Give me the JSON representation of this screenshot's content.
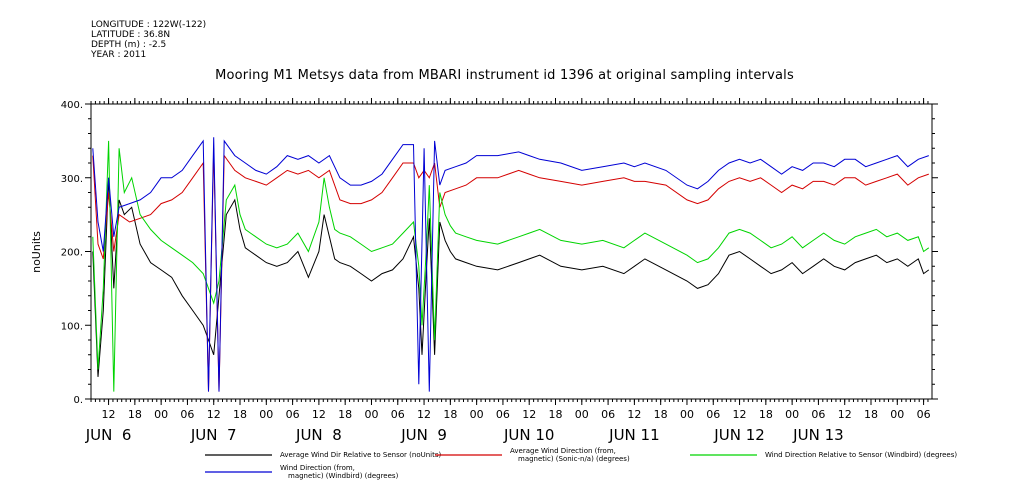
{
  "meta": {
    "longitude": "LONGITUDE : 122W(-122)",
    "latitude": "LATITUDE : 36.8N",
    "depth": "DEPTH (m) : -2.5",
    "year": "YEAR : 2011"
  },
  "chart_data": {
    "type": "line",
    "title": "Mooring M1 Metsys data from MBARI instrument id 1396 at original sampling intervals",
    "ylabel": "noUnits",
    "xlabel": "",
    "ylim": [
      0,
      400
    ],
    "yticks": [
      0,
      100,
      200,
      300,
      400
    ],
    "ytick_labels": [
      "0.",
      "100.",
      "200.",
      "300.",
      "400."
    ],
    "xlim": [
      5.333,
      13.33
    ],
    "hour_ticks": [
      {
        "x": 5.5,
        "label": "12"
      },
      {
        "x": 5.75,
        "label": "18"
      },
      {
        "x": 6.0,
        "label": "00"
      },
      {
        "x": 6.25,
        "label": "06"
      },
      {
        "x": 6.5,
        "label": "12"
      },
      {
        "x": 6.75,
        "label": "18"
      },
      {
        "x": 7.0,
        "label": "00"
      },
      {
        "x": 7.25,
        "label": "06"
      },
      {
        "x": 7.5,
        "label": "12"
      },
      {
        "x": 7.75,
        "label": "18"
      },
      {
        "x": 8.0,
        "label": "00"
      },
      {
        "x": 8.25,
        "label": "06"
      },
      {
        "x": 8.5,
        "label": "12"
      },
      {
        "x": 8.75,
        "label": "18"
      },
      {
        "x": 9.0,
        "label": "00"
      },
      {
        "x": 9.25,
        "label": "06"
      },
      {
        "x": 9.5,
        "label": "12"
      },
      {
        "x": 9.75,
        "label": "18"
      },
      {
        "x": 10.0,
        "label": "00"
      },
      {
        "x": 10.25,
        "label": "06"
      },
      {
        "x": 10.5,
        "label": "12"
      },
      {
        "x": 10.75,
        "label": "18"
      },
      {
        "x": 11.0,
        "label": "00"
      },
      {
        "x": 11.25,
        "label": "06"
      },
      {
        "x": 11.5,
        "label": "12"
      },
      {
        "x": 11.75,
        "label": "18"
      },
      {
        "x": 12.0,
        "label": "00"
      },
      {
        "x": 12.25,
        "label": "06"
      },
      {
        "x": 12.5,
        "label": "12"
      },
      {
        "x": 12.75,
        "label": "18"
      },
      {
        "x": 13.0,
        "label": "00"
      },
      {
        "x": 13.25,
        "label": "06"
      }
    ],
    "day_labels": [
      {
        "x": 5.5,
        "label": "JUN  6"
      },
      {
        "x": 6.5,
        "label": "JUN  7"
      },
      {
        "x": 7.5,
        "label": "JUN  8"
      },
      {
        "x": 8.5,
        "label": "JUN  9"
      },
      {
        "x": 9.5,
        "label": "JUN 10"
      },
      {
        "x": 10.5,
        "label": "JUN 11"
      },
      {
        "x": 11.5,
        "label": "JUN 12"
      },
      {
        "x": 12.25,
        "label": "JUN 13"
      }
    ],
    "x_unit": "day of June 2011 (fractional)",
    "series": [
      {
        "name": "Average Wind Dir Relative to Sensor (noUnits)",
        "color": "#000000",
        "x": [
          5.35,
          5.4,
          5.45,
          5.5,
          5.55,
          5.6,
          5.65,
          5.72,
          5.8,
          5.9,
          6.0,
          6.1,
          6.2,
          6.3,
          6.4,
          6.45,
          6.5,
          6.55,
          6.62,
          6.7,
          6.75,
          6.8,
          6.85,
          6.9,
          7.0,
          7.1,
          7.2,
          7.3,
          7.4,
          7.5,
          7.55,
          7.6,
          7.65,
          7.7,
          7.8,
          7.9,
          8.0,
          8.1,
          8.2,
          8.3,
          8.4,
          8.45,
          8.48,
          8.52,
          8.55,
          8.6,
          8.65,
          8.7,
          8.75,
          8.8,
          8.9,
          9.0,
          9.2,
          9.4,
          9.5,
          9.6,
          9.8,
          10.0,
          10.2,
          10.4,
          10.5,
          10.6,
          10.8,
          11.0,
          11.1,
          11.2,
          11.3,
          11.4,
          11.5,
          11.6,
          11.7,
          11.8,
          11.9,
          12.0,
          12.1,
          12.2,
          12.3,
          12.4,
          12.5,
          12.6,
          12.7,
          12.8,
          12.9,
          13.0,
          13.1,
          13.2,
          13.25,
          13.3
        ],
        "y": [
          200,
          30,
          120,
          300,
          150,
          270,
          250,
          260,
          210,
          185,
          175,
          165,
          140,
          120,
          100,
          80,
          60,
          140,
          250,
          270,
          230,
          205,
          200,
          195,
          185,
          180,
          185,
          200,
          165,
          200,
          250,
          220,
          190,
          185,
          180,
          170,
          160,
          170,
          175,
          190,
          220,
          150,
          60,
          170,
          245,
          60,
          240,
          215,
          200,
          190,
          185,
          180,
          175,
          185,
          190,
          195,
          180,
          175,
          180,
          170,
          180,
          190,
          175,
          160,
          150,
          155,
          170,
          195,
          200,
          190,
          180,
          170,
          175,
          185,
          170,
          180,
          190,
          180,
          175,
          185,
          190,
          195,
          185,
          190,
          180,
          190,
          170,
          175
        ]
      },
      {
        "name": "Average Wind Direction (from, magnetic) (Sonic-n/a) (degrees)",
        "color": "#d40000",
        "x": [
          5.35,
          5.4,
          5.45,
          5.5,
          5.55,
          5.6,
          5.7,
          5.8,
          5.9,
          6.0,
          6.1,
          6.2,
          6.3,
          6.4,
          6.45,
          6.5,
          6.55,
          6.6,
          6.7,
          6.8,
          6.9,
          7.0,
          7.1,
          7.2,
          7.3,
          7.4,
          7.5,
          7.6,
          7.7,
          7.8,
          7.9,
          8.0,
          8.1,
          8.2,
          8.3,
          8.4,
          8.45,
          8.5,
          8.55,
          8.6,
          8.65,
          8.7,
          8.8,
          8.9,
          9.0,
          9.2,
          9.4,
          9.5,
          9.6,
          9.8,
          10.0,
          10.2,
          10.4,
          10.5,
          10.6,
          10.8,
          11.0,
          11.1,
          11.2,
          11.3,
          11.4,
          11.5,
          11.6,
          11.7,
          11.8,
          11.9,
          12.0,
          12.1,
          12.2,
          12.3,
          12.4,
          12.5,
          12.6,
          12.7,
          12.8,
          12.9,
          13.0,
          13.1,
          13.2,
          13.3
        ],
        "y": [
          330,
          210,
          190,
          280,
          200,
          250,
          240,
          245,
          250,
          265,
          270,
          280,
          300,
          320,
          10,
          340,
          10,
          330,
          310,
          300,
          295,
          290,
          300,
          310,
          305,
          310,
          300,
          310,
          270,
          265,
          265,
          270,
          280,
          300,
          320,
          320,
          300,
          310,
          300,
          320,
          260,
          280,
          285,
          290,
          300,
          300,
          310,
          305,
          300,
          295,
          290,
          295,
          300,
          295,
          295,
          290,
          270,
          265,
          270,
          285,
          295,
          300,
          295,
          300,
          290,
          280,
          290,
          285,
          295,
          295,
          290,
          300,
          300,
          290,
          295,
          300,
          305,
          290,
          300,
          305
        ]
      },
      {
        "name": "Wind Direction Relative to Sensor (Windbird) (degrees)",
        "color": "#00d400",
        "x": [
          5.35,
          5.4,
          5.45,
          5.5,
          5.55,
          5.6,
          5.65,
          5.72,
          5.8,
          5.9,
          6.0,
          6.1,
          6.2,
          6.3,
          6.4,
          6.45,
          6.5,
          6.55,
          6.62,
          6.7,
          6.75,
          6.8,
          6.85,
          6.9,
          7.0,
          7.1,
          7.2,
          7.3,
          7.4,
          7.5,
          7.55,
          7.6,
          7.65,
          7.7,
          7.8,
          7.9,
          8.0,
          8.1,
          8.2,
          8.3,
          8.4,
          8.45,
          8.48,
          8.52,
          8.55,
          8.6,
          8.65,
          8.7,
          8.75,
          8.8,
          8.9,
          9.0,
          9.2,
          9.4,
          9.5,
          9.6,
          9.8,
          10.0,
          10.2,
          10.4,
          10.5,
          10.6,
          10.8,
          11.0,
          11.1,
          11.2,
          11.3,
          11.4,
          11.5,
          11.6,
          11.7,
          11.8,
          11.9,
          12.0,
          12.1,
          12.2,
          12.3,
          12.4,
          12.5,
          12.6,
          12.7,
          12.8,
          12.9,
          13.0,
          13.1,
          13.2,
          13.25,
          13.3
        ],
        "y": [
          220,
          40,
          150,
          350,
          10,
          340,
          280,
          300,
          250,
          230,
          215,
          205,
          195,
          185,
          170,
          150,
          130,
          160,
          270,
          290,
          250,
          230,
          225,
          220,
          210,
          205,
          210,
          225,
          200,
          240,
          300,
          260,
          230,
          225,
          220,
          210,
          200,
          205,
          210,
          225,
          240,
          180,
          100,
          200,
          290,
          80,
          280,
          250,
          235,
          225,
          220,
          215,
          210,
          220,
          225,
          230,
          215,
          210,
          215,
          205,
          215,
          225,
          210,
          195,
          185,
          190,
          205,
          225,
          230,
          225,
          215,
          205,
          210,
          220,
          205,
          215,
          225,
          215,
          210,
          220,
          225,
          230,
          220,
          225,
          215,
          220,
          200,
          205
        ]
      },
      {
        "name": "Wind Direction (from, magnetic) (Windbird) (degrees)",
        "color": "#0000d4",
        "x": [
          5.35,
          5.4,
          5.45,
          5.5,
          5.55,
          5.6,
          5.7,
          5.8,
          5.9,
          6.0,
          6.1,
          6.2,
          6.3,
          6.4,
          6.45,
          6.5,
          6.55,
          6.6,
          6.7,
          6.8,
          6.9,
          7.0,
          7.1,
          7.2,
          7.3,
          7.4,
          7.5,
          7.6,
          7.7,
          7.8,
          7.9,
          8.0,
          8.1,
          8.2,
          8.3,
          8.4,
          8.45,
          8.5,
          8.55,
          8.6,
          8.65,
          8.7,
          8.8,
          8.9,
          9.0,
          9.2,
          9.4,
          9.5,
          9.6,
          9.8,
          10.0,
          10.2,
          10.4,
          10.5,
          10.6,
          10.8,
          11.0,
          11.1,
          11.2,
          11.3,
          11.4,
          11.5,
          11.6,
          11.7,
          11.8,
          11.9,
          12.0,
          12.1,
          12.2,
          12.3,
          12.4,
          12.5,
          12.6,
          12.7,
          12.8,
          12.9,
          13.0,
          13.1,
          13.2,
          13.3
        ],
        "y": [
          340,
          240,
          200,
          300,
          220,
          260,
          265,
          270,
          280,
          300,
          300,
          310,
          330,
          350,
          10,
          355,
          10,
          350,
          330,
          320,
          310,
          305,
          315,
          330,
          325,
          330,
          320,
          330,
          300,
          290,
          290,
          295,
          305,
          325,
          345,
          345,
          20,
          340,
          10,
          350,
          290,
          310,
          315,
          320,
          330,
          330,
          335,
          330,
          325,
          320,
          310,
          315,
          320,
          315,
          320,
          310,
          290,
          285,
          295,
          310,
          320,
          325,
          320,
          325,
          315,
          305,
          315,
          310,
          320,
          320,
          315,
          325,
          325,
          315,
          320,
          325,
          330,
          315,
          325,
          330
        ]
      }
    ]
  }
}
